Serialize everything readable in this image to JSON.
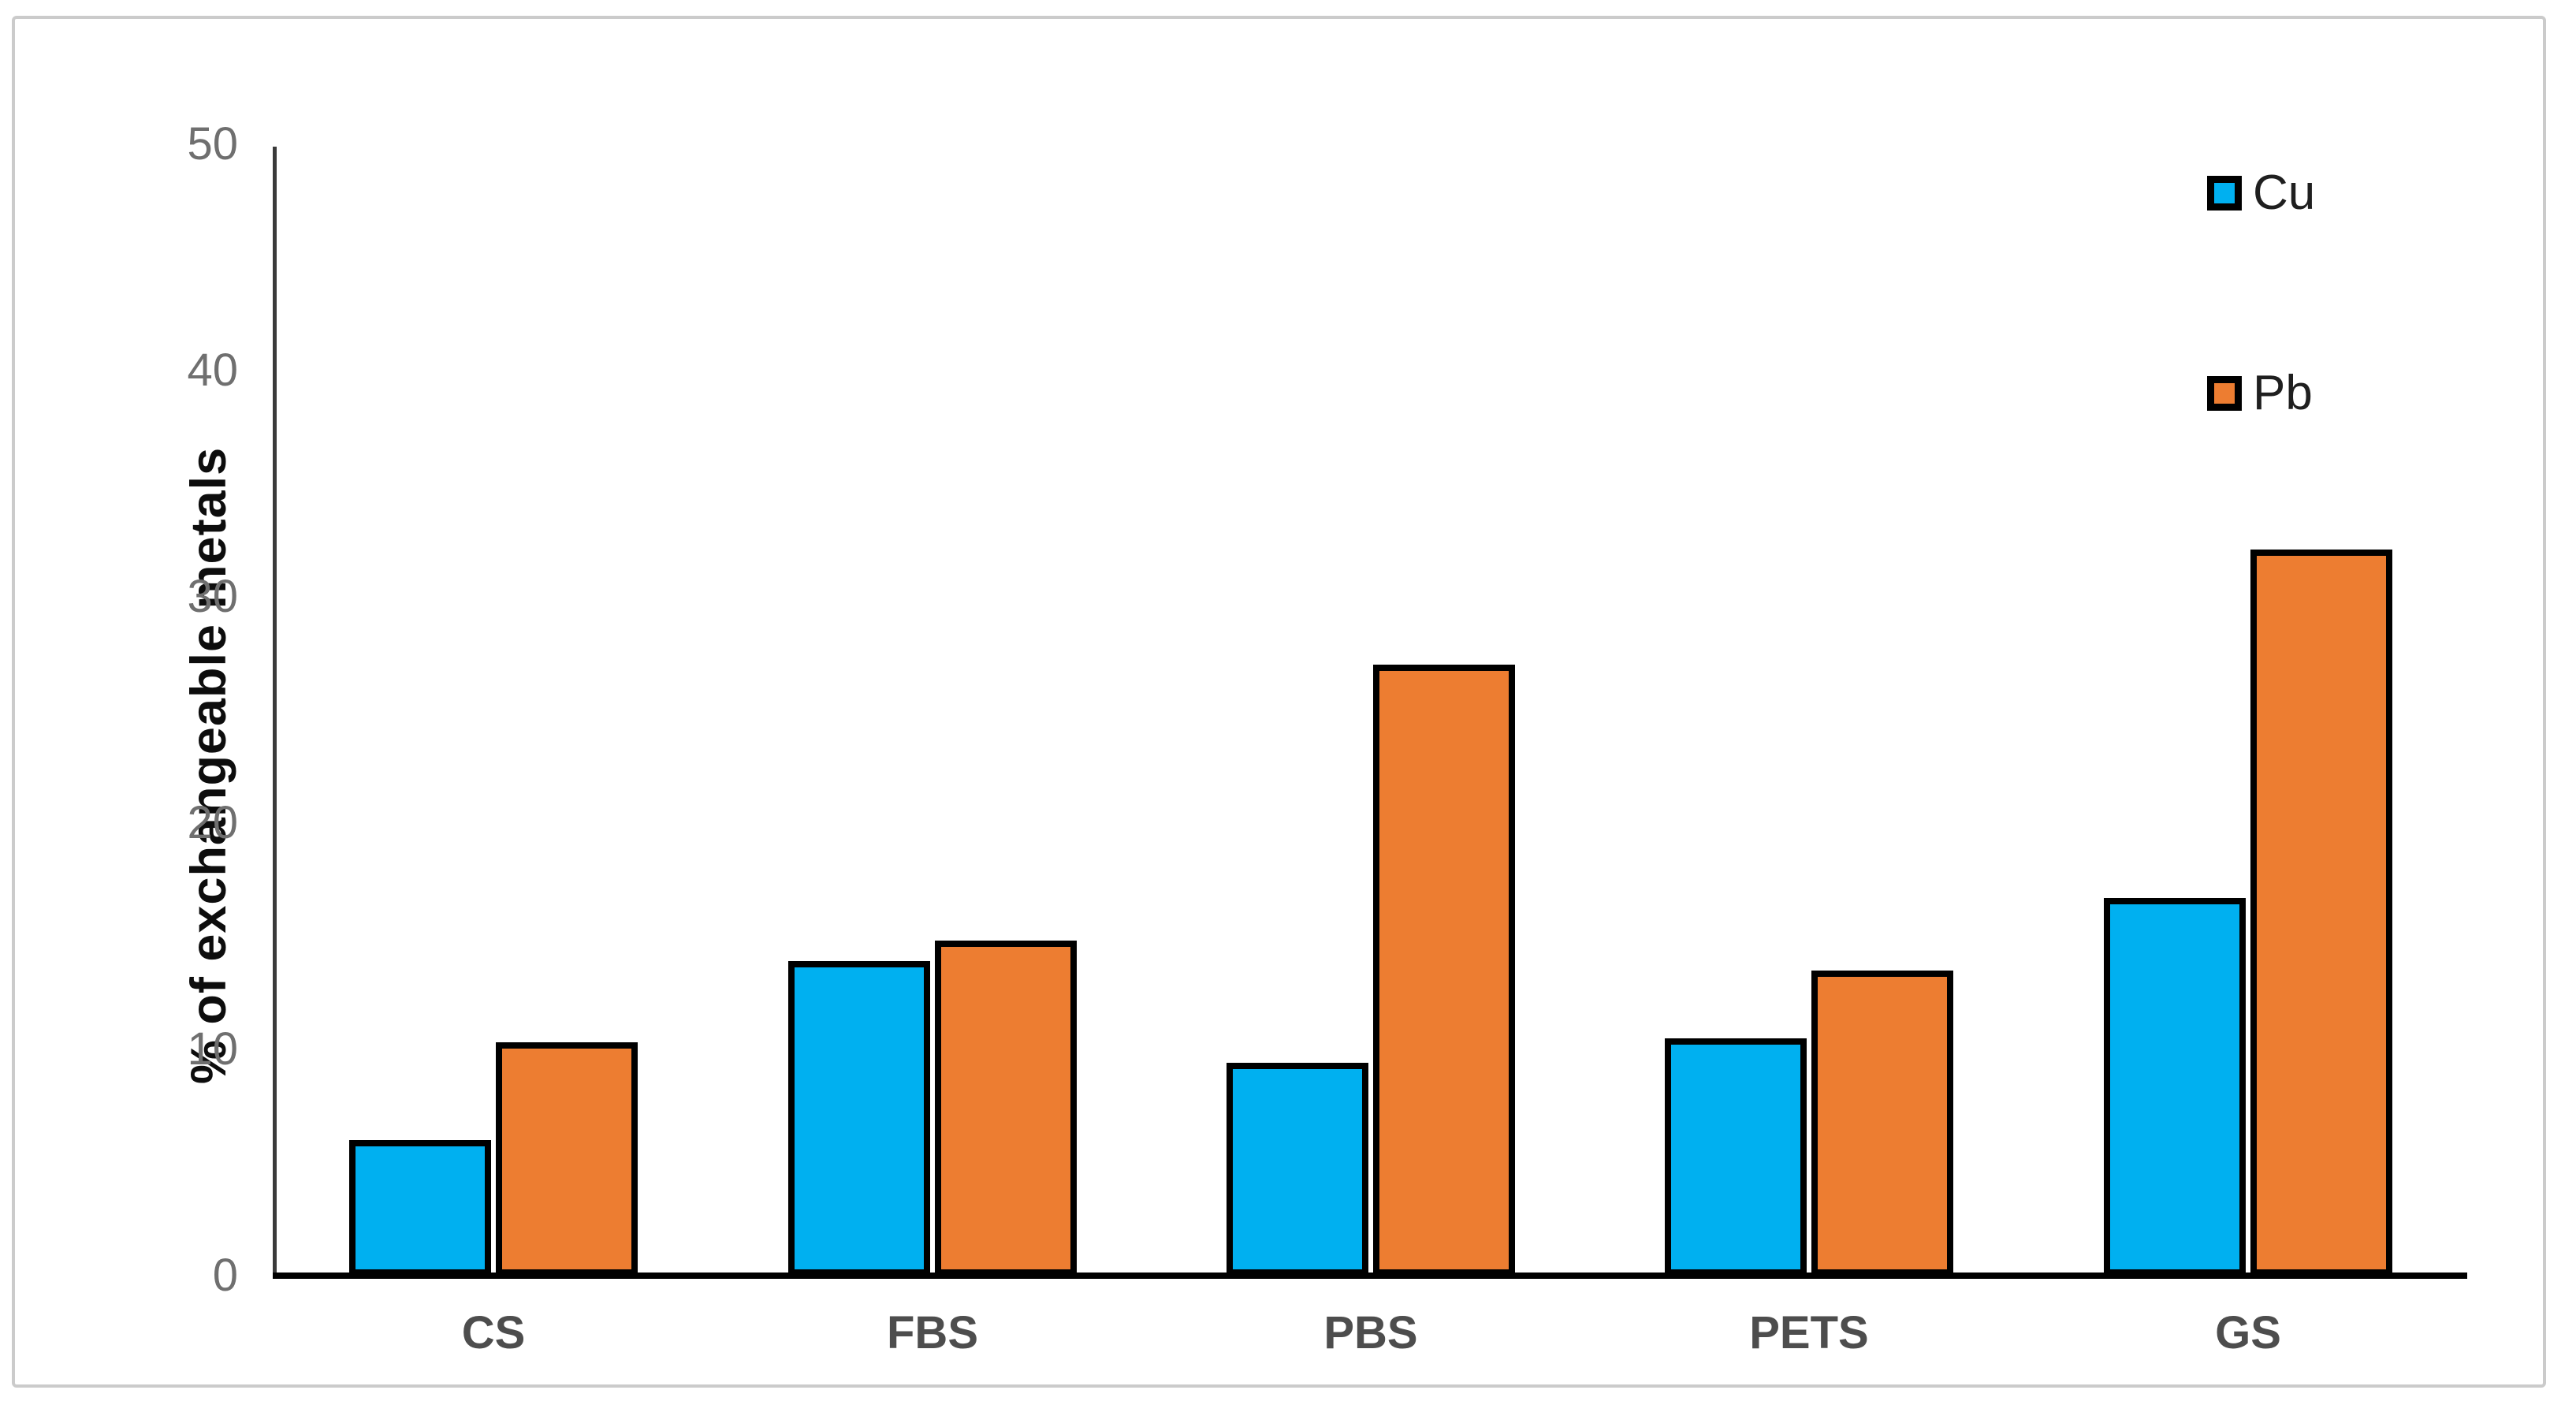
{
  "chart_data": {
    "type": "bar",
    "title": "",
    "xlabel": "",
    "ylabel": "% of exchangeable metals",
    "categories": [
      "CS",
      "FBS",
      "PBS",
      "PETS",
      "GS"
    ],
    "series": [
      {
        "name": "Cu",
        "color": "#00B0F0",
        "values": [
          6.0,
          13.9,
          9.4,
          10.5,
          16.7
        ]
      },
      {
        "name": "Pb",
        "color": "#ED7D31",
        "values": [
          10.3,
          14.8,
          27.0,
          13.5,
          32.1
        ]
      }
    ],
    "ylim": [
      0,
      50
    ],
    "yticks": [
      0,
      10,
      20,
      30,
      40,
      50
    ],
    "grid": false,
    "legend_position": "top-right",
    "bar_border_color": "#000000",
    "axis_color": "#000000",
    "tick_label_color": "#6f6f6f",
    "category_label_color": "#4d4d4d"
  }
}
